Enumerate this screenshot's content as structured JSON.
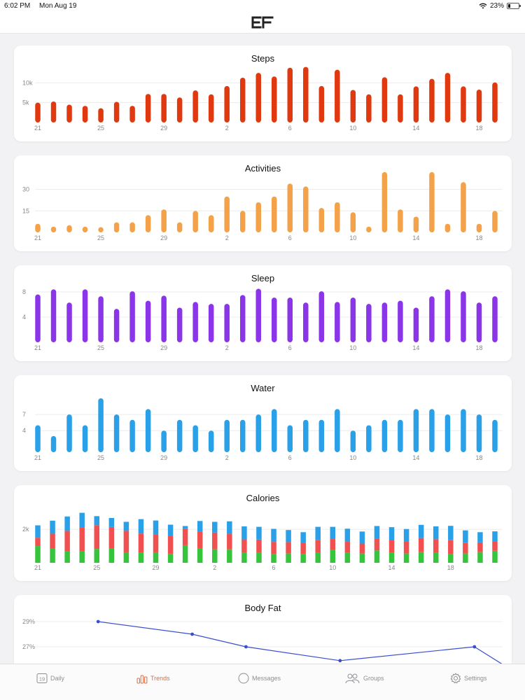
{
  "status_bar": {
    "time": "6:02 PM",
    "date": "Mon Aug 19",
    "battery": "23%"
  },
  "header": {
    "logo_text": "EF"
  },
  "x_tick_labels": [
    "21",
    "25",
    "29",
    "2",
    "6",
    "10",
    "14",
    "18"
  ],
  "x_tick_indices": [
    0,
    4,
    8,
    12,
    16,
    20,
    24,
    28
  ],
  "cards": {
    "steps": {
      "title": "Steps"
    },
    "activities": {
      "title": "Activities"
    },
    "sleep": {
      "title": "Sleep"
    },
    "water": {
      "title": "Water"
    },
    "calories": {
      "title": "Calories"
    },
    "bodyfat": {
      "title": "Body Fat"
    }
  },
  "chart_data": [
    {
      "id": "steps",
      "type": "bar",
      "title": "Steps",
      "color": "#e0380f",
      "yticks": [
        {
          "v": 5000,
          "label": "5k"
        },
        {
          "v": 10000,
          "label": "10k"
        }
      ],
      "ylim": [
        0,
        15000
      ],
      "values": [
        5000,
        5300,
        4500,
        4200,
        3600,
        5200,
        4200,
        7200,
        7200,
        6300,
        8100,
        7100,
        9200,
        11300,
        12500,
        11600,
        13800,
        14000,
        9200,
        13300,
        8200,
        7100,
        11400,
        7100,
        9100,
        11000,
        12500,
        9100,
        8300,
        10100
      ]
    },
    {
      "id": "activities",
      "type": "bar",
      "title": "Activities",
      "color": "#f3a24a",
      "yticks": [
        {
          "v": 15,
          "label": "15"
        },
        {
          "v": 30,
          "label": "30"
        }
      ],
      "ylim": [
        0,
        40
      ],
      "values": [
        6,
        4,
        5,
        4,
        3,
        7,
        7,
        12,
        16,
        7,
        15,
        12,
        25,
        15,
        21,
        25,
        34,
        32,
        17,
        21,
        14,
        4,
        42,
        16,
        11,
        42,
        6,
        35,
        6,
        15
      ]
    },
    {
      "id": "sleep",
      "type": "bar",
      "title": "Sleep",
      "color": "#8a36e8",
      "yticks": [
        {
          "v": 4,
          "label": "4"
        },
        {
          "v": 8,
          "label": "8"
        }
      ],
      "ylim": [
        0,
        10
      ],
      "values": [
        7.6,
        8.4,
        6.3,
        8.4,
        7.3,
        5.3,
        8.1,
        6.6,
        7.4,
        5.5,
        6.4,
        6.1,
        6.1,
        7.5,
        8.5,
        7.1,
        7.1,
        6.3,
        8.1,
        6.4,
        7.1,
        6.1,
        6.3,
        6.6,
        5.5,
        7.3,
        8.4,
        8.1,
        6.3,
        7.3
      ]
    },
    {
      "id": "water",
      "type": "bar",
      "title": "Water",
      "color": "#2aa0e8",
      "yticks": [
        {
          "v": 4,
          "label": "4"
        },
        {
          "v": 7,
          "label": "7"
        }
      ],
      "ylim": [
        0,
        10
      ],
      "values": [
        5,
        3,
        7,
        5,
        10,
        7,
        6,
        8,
        4,
        6,
        5,
        4,
        6,
        6,
        7,
        8,
        5,
        6,
        6,
        8,
        4,
        5,
        6,
        6,
        8,
        8,
        7,
        8,
        7,
        6
      ]
    },
    {
      "id": "calories",
      "type": "stacked_bar",
      "title": "Calories",
      "yticks": [
        {
          "v": 2000,
          "label": "2k"
        }
      ],
      "ylim": [
        0,
        3600
      ],
      "series": [
        {
          "name": "",
          "color": "#36c43c",
          "values": [
            1000,
            860,
            710,
            710,
            830,
            860,
            630,
            610,
            630,
            530,
            1050,
            860,
            810,
            810,
            610,
            610,
            510,
            560,
            510,
            610,
            760,
            610,
            560,
            740,
            610,
            560,
            640,
            610,
            510,
            560,
            640,
            720
          ]
        },
        {
          "name": "",
          "color": "#f05050",
          "values": [
            500,
            880,
            1200,
            1420,
            1420,
            1280,
            1280,
            1140,
            1080,
            1080,
            990,
            1000,
            1000,
            930,
            790,
            780,
            740,
            680,
            700,
            760,
            660,
            650,
            590,
            720,
            750,
            720,
            840,
            800,
            840,
            620,
            580,
            560
          ]
        },
        {
          "name": "",
          "color": "#2aa0e8",
          "values": [
            740,
            780,
            860,
            860,
            540,
            540,
            540,
            860,
            820,
            670,
            160,
            640,
            640,
            740,
            780,
            760,
            780,
            720,
            620,
            780,
            730,
            780,
            720,
            740,
            770,
            740,
            790,
            770,
            860,
            760,
            610,
            600
          ]
        }
      ]
    },
    {
      "id": "bodyfat",
      "type": "line",
      "title": "Body Fat",
      "color": "#3a4fd0",
      "yticks": [
        {
          "v": 27,
          "label": "27%"
        },
        {
          "v": 29,
          "label": "29%"
        }
      ],
      "x": [
        3.5,
        10.5,
        14.5,
        21.5,
        31.5,
        34.5
      ],
      "values": [
        29.0,
        28.0,
        27.0,
        25.9,
        27.0,
        25.0
      ]
    }
  ],
  "tabs": [
    {
      "label": "Daily",
      "icon": "calendar-icon",
      "badge": "19",
      "active": false
    },
    {
      "label": "Trends",
      "icon": "bar-chart-icon",
      "active": true
    },
    {
      "label": "Messages",
      "icon": "chat-bubble-icon",
      "active": false
    },
    {
      "label": "Groups",
      "icon": "people-icon",
      "active": false
    },
    {
      "label": "Settings",
      "icon": "gear-icon",
      "active": false
    }
  ],
  "colors": {
    "accent": "#e46a3d",
    "tab_inactive": "#8e8e93",
    "grid": "#ececec",
    "axis_text": "#888888"
  }
}
